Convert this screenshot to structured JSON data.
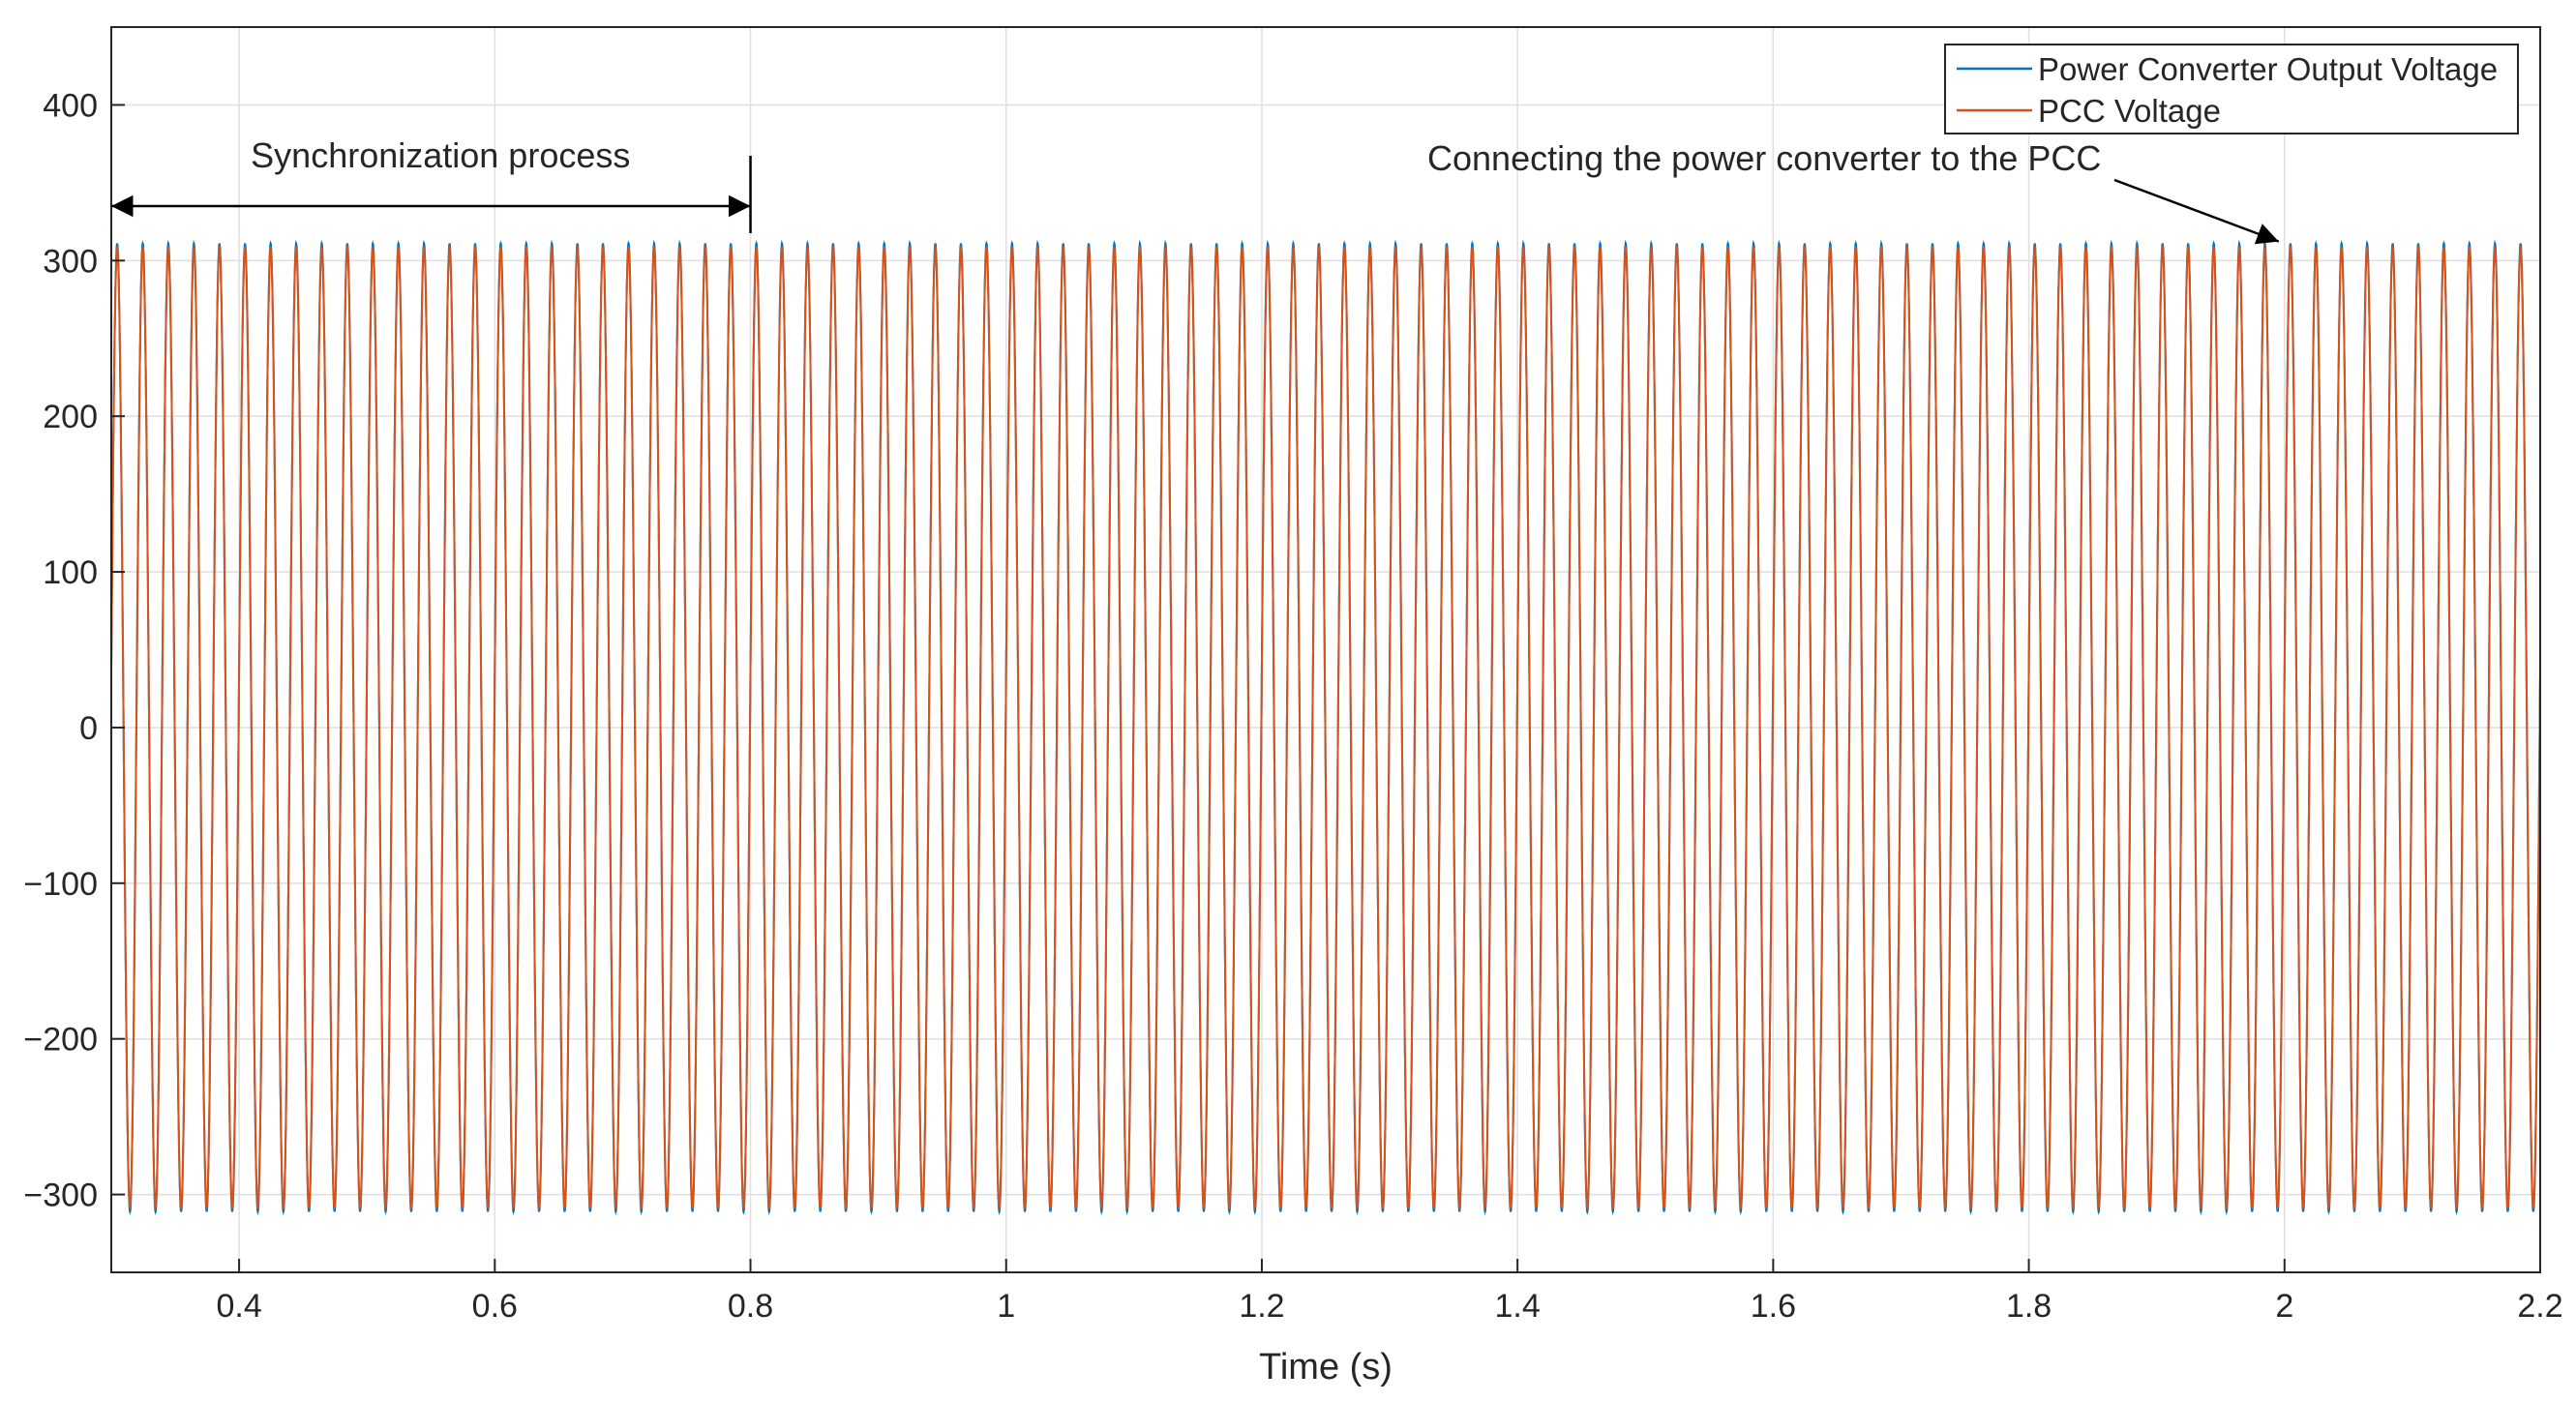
{
  "chart_data": {
    "type": "line",
    "title": "",
    "xlabel": "Time (s)",
    "ylabel": "",
    "xlim": [
      0.3,
      2.2
    ],
    "ylim": [
      -350,
      450
    ],
    "grid": true,
    "legend_placement": "top-right",
    "x_ticks": [
      0.4,
      0.6,
      0.8,
      1,
      1.2,
      1.4,
      1.6,
      1.8,
      2,
      2.2
    ],
    "x_tick_labels": [
      "0.4",
      "0.6",
      "0.8",
      "1",
      "1.2",
      "1.4",
      "1.6",
      "1.8",
      "2",
      "2.2"
    ],
    "y_ticks": [
      -300,
      -200,
      -100,
      0,
      100,
      200,
      300,
      400
    ],
    "y_tick_labels": [
      "−300",
      "−200",
      "−100",
      "0",
      "100",
      "200",
      "300",
      "400"
    ],
    "series": [
      {
        "name": "Power Converter Output Voltage",
        "color": "#0072BD",
        "waveform": "sine",
        "amplitude": 311,
        "frequency_hz": 50,
        "x_start": 0.3,
        "x_end": 2.2
      },
      {
        "name": "PCC Voltage",
        "color": "#D95319",
        "waveform": "sine",
        "amplitude": 308,
        "frequency_hz": 50,
        "x_start": 0.3,
        "x_end": 2.2
      }
    ],
    "annotations": [
      {
        "id": "sync",
        "text": "Synchronization process",
        "x_from": 0.3,
        "x_to": 0.8,
        "y": 335
      },
      {
        "id": "connect",
        "text": "Connecting the power converter to the PCC",
        "arrow_to_x": 2.0,
        "arrow_to_y": 311
      }
    ]
  }
}
